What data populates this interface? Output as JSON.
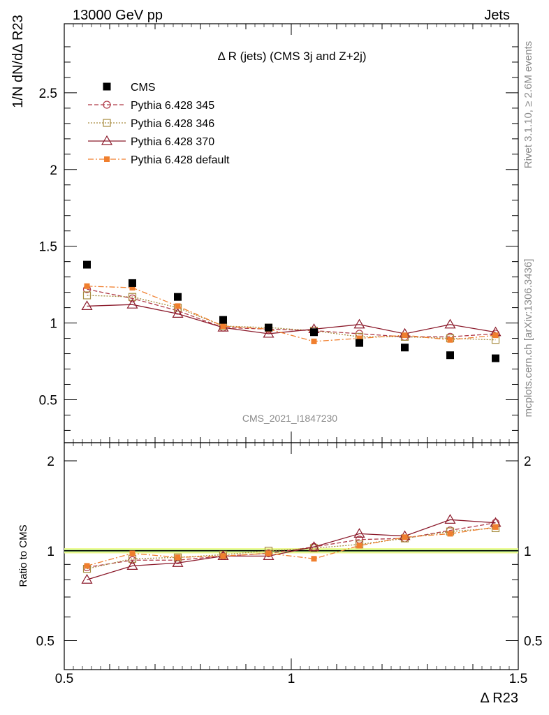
{
  "header": {
    "left": "13000 GeV pp",
    "right": "Jets"
  },
  "side": {
    "rivet": "Rivet 3.1.10, ≥ 2.6M events",
    "mcplots": "mcplots.cern.ch [arXiv:1306.3436]"
  },
  "watermark": "CMS_2021_I1847230",
  "chart_data": {
    "type": "scatter",
    "title": "Δ R (jets) (CMS 3j and Z+2j)",
    "xlabel": "Δ R23",
    "ylabel": "1/N dN/dΔ R23",
    "ratio_ylabel": "Ratio to CMS",
    "xlim": [
      0.5,
      1.5
    ],
    "ylim": [
      0.22,
      2.95
    ],
    "ratio_ylim": [
      0.4,
      2.3
    ],
    "log_y": false,
    "xticks": [
      "0.5",
      "1",
      "1.5"
    ],
    "yticks": [
      "0.5",
      "1",
      "1.5",
      "2",
      "2.5"
    ],
    "ratio_yticks": [
      "0.5",
      "1",
      "2"
    ],
    "x": [
      0.55,
      0.65,
      0.75,
      0.85,
      0.95,
      1.05,
      1.15,
      1.25,
      1.35,
      1.45
    ],
    "legend_position": "top-left",
    "series": [
      {
        "name": "CMS",
        "color": "#000000",
        "marker": "square-filled",
        "line": "none",
        "values": [
          1.38,
          1.26,
          1.17,
          1.02,
          0.97,
          0.94,
          0.87,
          0.84,
          0.79,
          0.77
        ]
      },
      {
        "name": "Pythia 6.428 345",
        "color": "#b03a48",
        "marker": "circle-open",
        "line": "dashed",
        "values": [
          1.22,
          1.16,
          1.08,
          0.97,
          0.96,
          0.95,
          0.93,
          0.91,
          0.91,
          0.93
        ]
      },
      {
        "name": "Pythia 6.428 346",
        "color": "#a68a3d",
        "marker": "square-open",
        "line": "dotted",
        "values": [
          1.18,
          1.17,
          1.1,
          0.98,
          0.97,
          0.95,
          0.91,
          0.91,
          0.9,
          0.89
        ]
      },
      {
        "name": "Pythia 6.428 370",
        "color": "#8b1a2b",
        "marker": "triangle-open",
        "line": "solid",
        "values": [
          1.11,
          1.12,
          1.06,
          0.97,
          0.93,
          0.96,
          0.99,
          0.93,
          0.99,
          0.94
        ]
      },
      {
        "name": "Pythia 6.428 default",
        "color": "#f07f2e",
        "marker": "square-filled-small",
        "line": "dashdot",
        "values": [
          1.24,
          1.23,
          1.11,
          0.98,
          0.96,
          0.88,
          0.9,
          0.92,
          0.89,
          0.92
        ]
      }
    ],
    "ratio_series": [
      {
        "name": "Pythia 6.428 345",
        "values": [
          0.88,
          0.93,
          0.93,
          0.96,
          0.98,
          1.03,
          1.09,
          1.1,
          1.17,
          1.24
        ]
      },
      {
        "name": "Pythia 6.428 346",
        "values": [
          0.87,
          0.94,
          0.95,
          0.97,
          1.0,
          1.02,
          1.05,
          1.1,
          1.16,
          1.19
        ]
      },
      {
        "name": "Pythia 6.428 370",
        "values": [
          0.8,
          0.89,
          0.91,
          0.96,
          0.96,
          1.03,
          1.14,
          1.12,
          1.27,
          1.24
        ]
      },
      {
        "name": "Pythia 6.428 default",
        "values": [
          0.89,
          0.98,
          0.95,
          0.96,
          0.98,
          0.94,
          1.04,
          1.11,
          1.14,
          1.2
        ]
      }
    ],
    "ratio_band": {
      "x": [
        0.5,
        1.5
      ],
      "low": 0.98,
      "high": 1.02
    }
  }
}
